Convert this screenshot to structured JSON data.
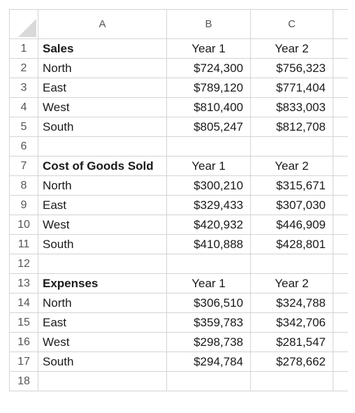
{
  "columns": [
    "A",
    "B",
    "C"
  ],
  "rows": [
    {
      "num": "1",
      "a": "Sales",
      "b": "Year 1",
      "c": "Year 2",
      "bold": true,
      "header": true
    },
    {
      "num": "2",
      "a": "North",
      "b": "$724,300",
      "c": "$756,323"
    },
    {
      "num": "3",
      "a": "East",
      "b": "$789,120",
      "c": "$771,404"
    },
    {
      "num": "4",
      "a": "West",
      "b": "$810,400",
      "c": "$833,003"
    },
    {
      "num": "5",
      "a": "South",
      "b": "$805,247",
      "c": "$812,708"
    },
    {
      "num": "6",
      "a": "",
      "b": "",
      "c": ""
    },
    {
      "num": "7",
      "a": "Cost of Goods Sold",
      "b": "Year 1",
      "c": "Year 2",
      "bold": true,
      "header": true
    },
    {
      "num": "8",
      "a": "North",
      "b": "$300,210",
      "c": "$315,671"
    },
    {
      "num": "9",
      "a": "East",
      "b": "$329,433",
      "c": "$307,030"
    },
    {
      "num": "10",
      "a": "West",
      "b": "$420,932",
      "c": "$446,909"
    },
    {
      "num": "11",
      "a": "South",
      "b": "$410,888",
      "c": "$428,801"
    },
    {
      "num": "12",
      "a": "",
      "b": "",
      "c": ""
    },
    {
      "num": "13",
      "a": "Expenses",
      "b": "Year 1",
      "c": "Year 2",
      "bold": true,
      "header": true
    },
    {
      "num": "14",
      "a": "North",
      "b": "$306,510",
      "c": "$324,788"
    },
    {
      "num": "15",
      "a": "East",
      "b": "$359,783",
      "c": "$342,706"
    },
    {
      "num": "16",
      "a": "West",
      "b": "$298,738",
      "c": "$281,547"
    },
    {
      "num": "17",
      "a": "South",
      "b": "$294,784",
      "c": "$278,662"
    },
    {
      "num": "18",
      "a": "",
      "b": "",
      "c": ""
    }
  ]
}
